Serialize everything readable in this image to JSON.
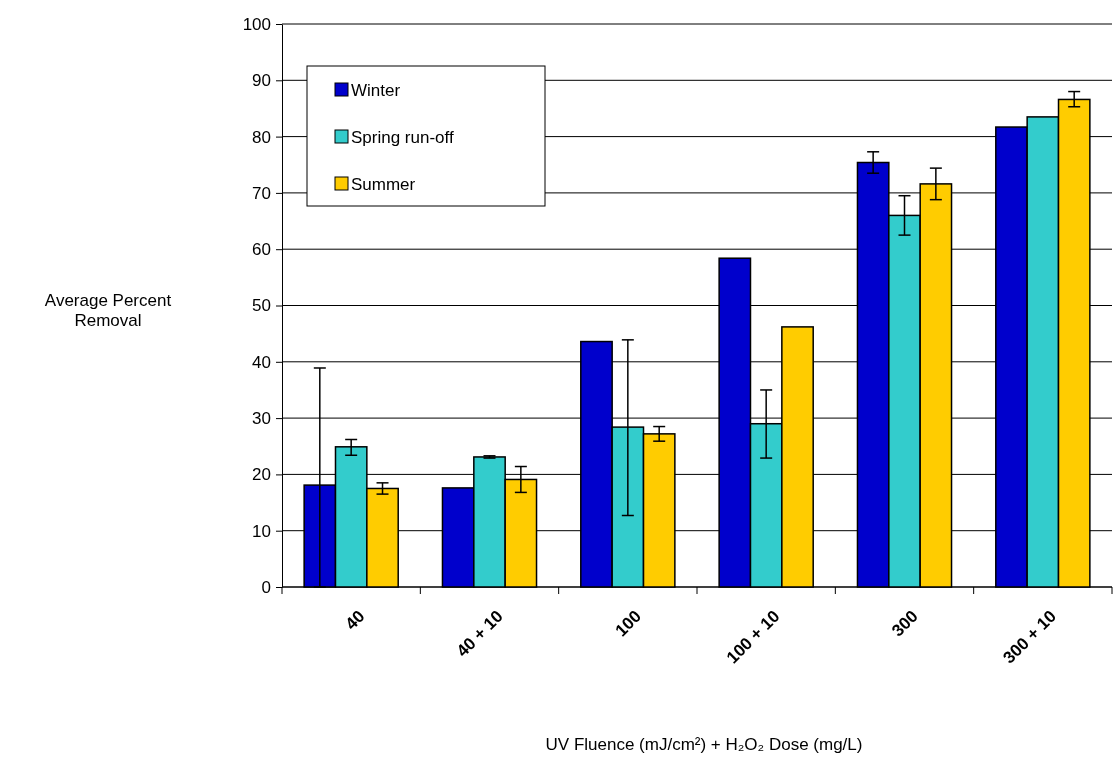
{
  "chart_data": {
    "type": "bar",
    "xlabel": "UV Fluence (mJ/cm²) + H₂O₂ Dose (mg/L)",
    "ylabel": "Average Percent Removal",
    "categories": [
      "40",
      "40 + 10",
      "100",
      "100 + 10",
      "300",
      "300 + 10"
    ],
    "series": [
      {
        "name": "Winter",
        "color": "#0000cc",
        "values": [
          18.1,
          17.6,
          43.6,
          58.4,
          75.4,
          81.7
        ],
        "errors": [
          [
            0,
            38.9
          ],
          null,
          null,
          null,
          [
            73.5,
            77.3
          ],
          null
        ]
      },
      {
        "name": "Spring run-off",
        "color": "#33cccc",
        "values": [
          24.9,
          23.1,
          28.4,
          29.0,
          66.0,
          83.5
        ],
        "errors": [
          [
            23.4,
            26.2
          ],
          [
            22.9,
            23.3
          ],
          [
            12.7,
            43.9
          ],
          [
            22.9,
            35.0
          ],
          [
            62.5,
            69.5
          ],
          null
        ]
      },
      {
        "name": "Summer",
        "color": "#ffcc00",
        "values": [
          17.5,
          19.1,
          27.2,
          46.2,
          71.6,
          86.6
        ],
        "errors": [
          [
            16.5,
            18.5
          ],
          [
            16.8,
            21.4
          ],
          [
            25.9,
            28.5
          ],
          null,
          [
            68.8,
            74.4
          ],
          [
            85.3,
            88.0
          ]
        ]
      }
    ],
    "ylim": [
      0,
      100
    ],
    "yticks": [
      0,
      10,
      20,
      30,
      40,
      50,
      60,
      70,
      80,
      90,
      100
    ],
    "grid": "y",
    "legend": "top left"
  }
}
